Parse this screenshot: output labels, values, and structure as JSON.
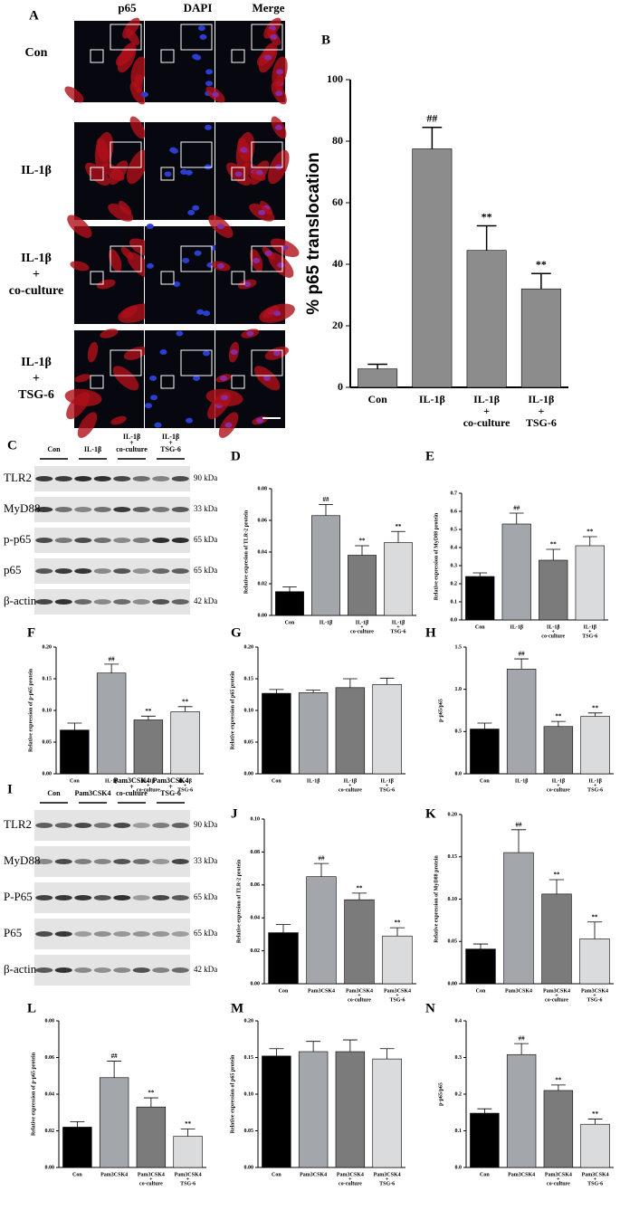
{
  "chart_data": [
    {
      "type": "bar",
      "label": "B",
      "ylabel": "% p65 translocation",
      "categories": [
        [
          "Con"
        ],
        [
          "IL-1β"
        ],
        [
          "IL-1β",
          "+",
          "co-culture"
        ],
        [
          "IL-1β",
          "+",
          "TSG-6"
        ]
      ],
      "values": [
        6,
        77.5,
        44.5,
        32
      ],
      "errors": [
        1.5,
        7,
        8,
        5
      ],
      "annotations": [
        null,
        "##",
        "**",
        "**"
      ],
      "colors": [
        "#8c8c8c",
        "#8c8c8c",
        "#8c8c8c",
        "#8c8c8c"
      ],
      "ylim": [
        0,
        100
      ],
      "yticks": [
        0,
        20,
        40,
        60,
        80,
        100
      ]
    },
    {
      "type": "bar",
      "label": "D",
      "ylabel": "Relative expresion of TLR-2 protein",
      "categories": [
        [
          "Con"
        ],
        [
          "IL-1β"
        ],
        [
          "IL-1β",
          "+",
          "co-culture"
        ],
        [
          "IL-1β",
          "+",
          "TSG-6"
        ]
      ],
      "values": [
        0.015,
        0.063,
        0.038,
        0.046
      ],
      "errors": [
        0.003,
        0.007,
        0.006,
        0.007
      ],
      "annotations": [
        null,
        "##",
        "**",
        "**"
      ],
      "colors": [
        "#000000",
        "#a3a7ab",
        "#7b7b7b",
        "#d9dbdd"
      ],
      "ylim": [
        0,
        0.08
      ],
      "yticks": [
        {
          "value": 0,
          "label": "0.00"
        },
        0.02,
        0.04,
        0.06,
        0.08
      ]
    },
    {
      "type": "bar",
      "label": "E",
      "ylabel": "Relative expression of MyD88 protein",
      "categories": [
        [
          "Con"
        ],
        [
          "IL-1β"
        ],
        [
          "IL-1β",
          "+",
          "co-culture"
        ],
        [
          "IL-1β",
          "+",
          "TSG-6"
        ]
      ],
      "values": [
        0.24,
        0.53,
        0.33,
        0.41
      ],
      "errors": [
        0.02,
        0.06,
        0.06,
        0.05
      ],
      "annotations": [
        null,
        "##",
        "**",
        "**"
      ],
      "colors": [
        "#000000",
        "#a3a7ab",
        "#7b7b7b",
        "#d9dbdd"
      ],
      "ylim": [
        0,
        0.7
      ],
      "yticks": [
        {
          "value": 0,
          "label": "0.0"
        },
        0.1,
        0.2,
        0.3,
        0.4,
        0.5,
        0.6,
        0.7
      ]
    },
    {
      "type": "bar",
      "label": "F",
      "ylabel": "Relative expression of p-p65 protein",
      "categories": [
        [
          "Con"
        ],
        [
          "IL-1β"
        ],
        [
          "IL-1β",
          "+",
          "co-culture"
        ],
        [
          "IL-1β",
          "+",
          "TSG-6"
        ]
      ],
      "values": [
        0.069,
        0.159,
        0.085,
        0.098
      ],
      "errors": [
        0.011,
        0.014,
        0.006,
        0.008
      ],
      "annotations": [
        null,
        "##",
        "**",
        "**"
      ],
      "colors": [
        "#000000",
        "#a3a7ab",
        "#7b7b7b",
        "#d9dbdd"
      ],
      "ylim": [
        0,
        0.2
      ],
      "yticks": [
        {
          "value": 0,
          "label": "0.00"
        },
        0.05,
        {
          "value": 0.1,
          "label": "0.10"
        },
        0.15,
        {
          "value": 0.2,
          "label": "0.20"
        }
      ]
    },
    {
      "type": "bar",
      "label": "G",
      "ylabel": "Relative expression of p65 protein",
      "categories": [
        [
          "Con"
        ],
        [
          "IL-1β"
        ],
        [
          "IL-1β",
          "+",
          "co-culture"
        ],
        [
          "IL-1β",
          "+",
          "TSG-6"
        ]
      ],
      "values": [
        0.127,
        0.128,
        0.136,
        0.141
      ],
      "errors": [
        0.006,
        0.004,
        0.014,
        0.01
      ],
      "colors": [
        "#000000",
        "#a3a7ab",
        "#7b7b7b",
        "#d9dbdd"
      ],
      "ylim": [
        0,
        0.2
      ],
      "yticks": [
        {
          "value": 0,
          "label": "0.00"
        },
        0.05,
        {
          "value": 0.1,
          "label": "0.10"
        },
        0.15,
        {
          "value": 0.2,
          "label": "0.20"
        }
      ]
    },
    {
      "type": "bar",
      "label": "H",
      "ylabel": "p-p65/p65",
      "categories": [
        [
          "Con"
        ],
        [
          "IL-1β"
        ],
        [
          "IL-1β",
          "+",
          "co-culture"
        ],
        [
          "IL-1β",
          "+",
          "TSG-6"
        ]
      ],
      "values": [
        0.53,
        1.24,
        0.56,
        0.68
      ],
      "errors": [
        0.07,
        0.12,
        0.06,
        0.04
      ],
      "annotations": [
        null,
        "##",
        "**",
        "**"
      ],
      "colors": [
        "#000000",
        "#a3a7ab",
        "#7b7b7b",
        "#d9dbdd"
      ],
      "ylim": [
        0,
        1.5
      ],
      "yticks": [
        {
          "value": 0,
          "label": "0.0"
        },
        0.5,
        {
          "value": 1,
          "label": "1.0"
        },
        1.5
      ]
    },
    {
      "type": "bar",
      "label": "J",
      "ylabel": "Relative expresion of TLR-2 protein",
      "categories": [
        [
          "Con"
        ],
        [
          "Pam3CSK4"
        ],
        [
          "Pam3CSK4",
          "+",
          "co-culture"
        ],
        [
          "Pam3CSK4",
          "+",
          "TSG-6"
        ]
      ],
      "values": [
        0.031,
        0.065,
        0.051,
        0.029
      ],
      "errors": [
        0.005,
        0.008,
        0.004,
        0.005
      ],
      "annotations": [
        null,
        "##",
        "**",
        "**"
      ],
      "colors": [
        "#000000",
        "#a3a7ab",
        "#7b7b7b",
        "#d9dbdd"
      ],
      "ylim": [
        0,
        0.1
      ],
      "yticks": [
        {
          "value": 0,
          "label": "0.00"
        },
        0.02,
        0.04,
        0.06,
        0.08,
        {
          "value": 0.1,
          "label": "0.10"
        }
      ]
    },
    {
      "type": "bar",
      "label": "K",
      "ylabel": "Relative expression of MyD88 protein",
      "categories": [
        [
          "Con"
        ],
        [
          "Pam3CSK4"
        ],
        [
          "Pam3CSK4",
          "+",
          "co-culture"
        ],
        [
          "Pam3CSK4",
          "+",
          "TSG-6"
        ]
      ],
      "values": [
        0.041,
        0.155,
        0.106,
        0.053
      ],
      "errors": [
        0.006,
        0.027,
        0.017,
        0.02
      ],
      "annotations": [
        null,
        "##",
        "**",
        "**"
      ],
      "colors": [
        "#000000",
        "#a3a7ab",
        "#7b7b7b",
        "#d9dbdd"
      ],
      "ylim": [
        0,
        0.2
      ],
      "yticks": [
        {
          "value": 0,
          "label": "0.00"
        },
        0.05,
        {
          "value": 0.1,
          "label": "0.10"
        },
        0.15,
        {
          "value": 0.2,
          "label": "0.20"
        }
      ]
    },
    {
      "type": "bar",
      "label": "L",
      "ylabel": "Relative expression of p-p65 protein",
      "categories": [
        [
          "Con"
        ],
        [
          "Pam3CSK4"
        ],
        [
          "Pam3CSK4",
          "+",
          "co-culture"
        ],
        [
          "Pam3CSK4",
          "+",
          "TSG-6"
        ]
      ],
      "values": [
        0.022,
        0.049,
        0.033,
        0.017
      ],
      "errors": [
        0.003,
        0.009,
        0.005,
        0.004
      ],
      "annotations": [
        null,
        "##",
        "**",
        "**"
      ],
      "colors": [
        "#000000",
        "#a3a7ab",
        "#7b7b7b",
        "#d9dbdd"
      ],
      "ylim": [
        0,
        0.08
      ],
      "yticks": [
        {
          "value": 0,
          "label": "0.00"
        },
        0.02,
        0.04,
        0.06,
        0.08
      ]
    },
    {
      "type": "bar",
      "label": "M",
      "ylabel": "Relative expression of p65 protein",
      "categories": [
        [
          "Con"
        ],
        [
          "Pam3CSK4"
        ],
        [
          "Pam3CSK4",
          "+",
          "co-culture"
        ],
        [
          "Pam3CSK4",
          "+",
          "TSG-6"
        ]
      ],
      "values": [
        0.152,
        0.158,
        0.158,
        0.148
      ],
      "errors": [
        0.01,
        0.014,
        0.016,
        0.014
      ],
      "colors": [
        "#000000",
        "#a3a7ab",
        "#7b7b7b",
        "#d9dbdd"
      ],
      "ylim": [
        0,
        0.2
      ],
      "yticks": [
        {
          "value": 0,
          "label": "0.00"
        },
        0.05,
        {
          "value": 0.1,
          "label": "0.10"
        },
        0.15,
        {
          "value": 0.2,
          "label": "0.20"
        }
      ]
    },
    {
      "type": "bar",
      "label": "N",
      "ylabel": "p-p65/p65",
      "categories": [
        [
          "Con"
        ],
        [
          "Pam3CSK4"
        ],
        [
          "Pam3CSK4",
          "+",
          "co-culture"
        ],
        [
          "Pam3CSK4",
          "+",
          "TSG-6"
        ]
      ],
      "values": [
        0.148,
        0.308,
        0.21,
        0.118
      ],
      "errors": [
        0.012,
        0.03,
        0.015,
        0.014
      ],
      "annotations": [
        null,
        "##",
        "**",
        "**"
      ],
      "colors": [
        "#000000",
        "#a3a7ab",
        "#7b7b7b",
        "#d9dbdd"
      ],
      "ylim": [
        0,
        0.4
      ],
      "yticks": [
        {
          "value": 0,
          "label": "0.0"
        },
        0.1,
        0.2,
        0.3,
        0.4
      ]
    }
  ],
  "figure": {
    "A": {
      "label": "A",
      "columns": [
        "p65",
        "DAPI",
        "Merge"
      ],
      "rows": [
        [
          "Con"
        ],
        [
          "IL-1β"
        ],
        [
          "IL-1β",
          "+",
          "co-culture"
        ],
        [
          "IL-1β",
          "+",
          "TSG-6"
        ]
      ]
    },
    "C": {
      "label": "C",
      "groups": [
        [
          "Con"
        ],
        [
          "IL-1β"
        ],
        [
          "IL-1β",
          "+",
          "co-culture"
        ],
        [
          "IL-1β",
          "+",
          "TSG-6"
        ]
      ],
      "proteins": [
        "TLR2",
        "MyD88",
        "p-p65",
        "p65",
        "β-actin"
      ],
      "sizes": [
        "90 kDa",
        "33 kDa",
        "65 kDa",
        "65 kDa",
        "42 kDa"
      ]
    },
    "I": {
      "label": "I",
      "groups": [
        [
          "Con"
        ],
        [
          "Pam3CSK4"
        ],
        [
          "Pam3CSK4",
          "+",
          "co-culture"
        ],
        [
          "Pam3CSK4",
          "+",
          "TSG-6"
        ]
      ],
      "proteins": [
        "TLR2",
        "MyD88",
        "P-P65",
        "P65",
        "β-actin"
      ],
      "sizes": [
        "90 kDa",
        "33 kDa",
        "65 kDa",
        "65 kDa",
        "42 kDa"
      ]
    }
  }
}
